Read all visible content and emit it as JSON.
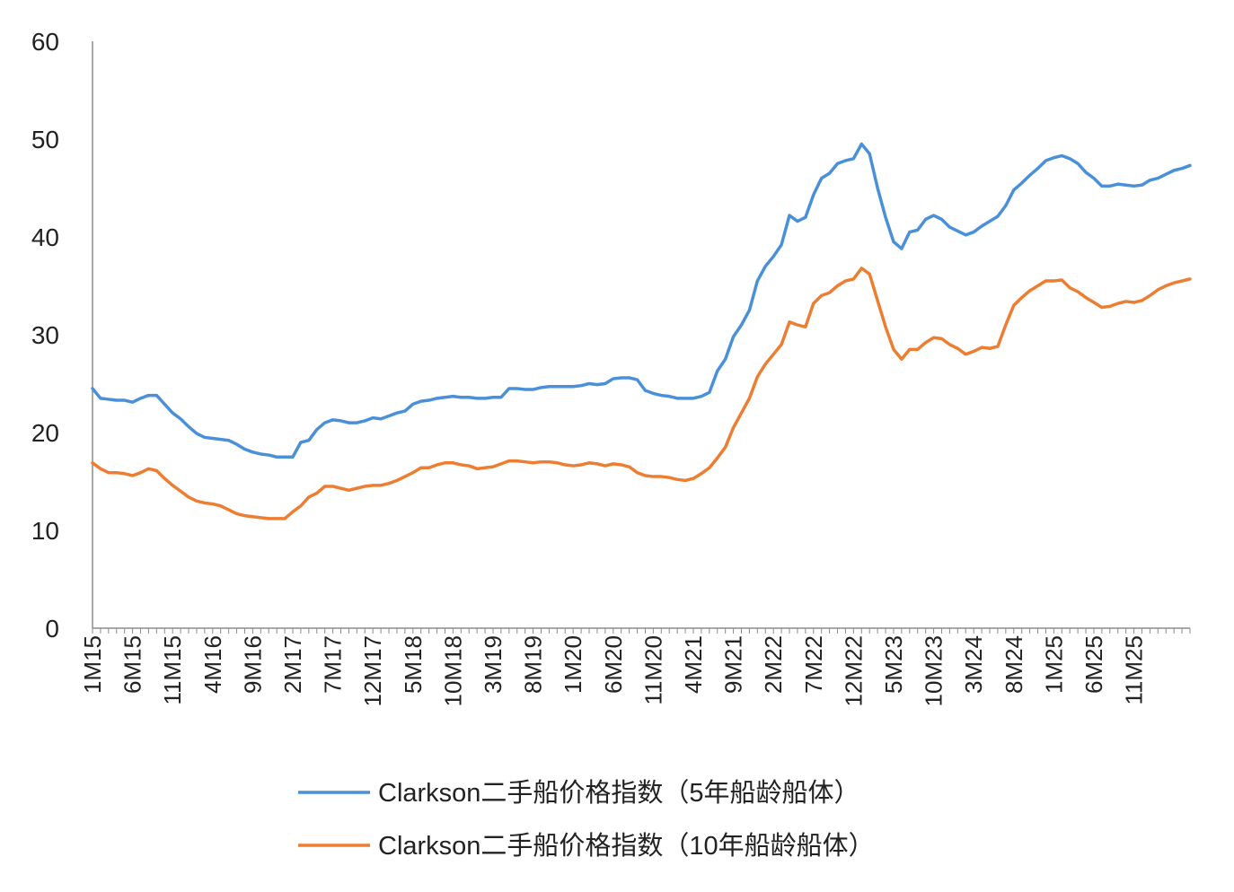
{
  "chart_data": {
    "type": "line",
    "title": "",
    "xlabel": "",
    "ylabel": "",
    "ylim": [
      0,
      60
    ],
    "yticks": [
      0,
      10,
      20,
      30,
      40,
      50,
      60
    ],
    "grid": false,
    "legend_position": "bottom",
    "x_tick_labels": [
      "1M15",
      "6M15",
      "11M15",
      "4M16",
      "9M16",
      "2M17",
      "7M17",
      "12M17",
      "5M18",
      "10M18",
      "3M19",
      "8M19",
      "1M20",
      "6M20",
      "11M20",
      "4M21",
      "9M21",
      "2M22",
      "7M22",
      "12M22",
      "5M23",
      "10M23",
      "3M24",
      "8M24",
      "1M25",
      "6M25",
      "11M25"
    ],
    "x_start": "2015-01",
    "series": [
      {
        "name": "Clarkson二手船价格指数（5年船龄船体）",
        "color": "#4a90d9",
        "values": [
          24.5,
          23.5,
          23.4,
          23.3,
          23.3,
          23.1,
          23.5,
          23.8,
          23.8,
          22.9,
          22.0,
          21.4,
          20.6,
          19.9,
          19.5,
          19.4,
          19.3,
          19.2,
          18.8,
          18.3,
          18.0,
          17.8,
          17.7,
          17.5,
          17.5,
          17.5,
          19.0,
          19.2,
          20.3,
          21.0,
          21.3,
          21.2,
          21.0,
          21.0,
          21.2,
          21.5,
          21.4,
          21.7,
          22.0,
          22.2,
          22.9,
          23.2,
          23.3,
          23.5,
          23.6,
          23.7,
          23.6,
          23.6,
          23.5,
          23.5,
          23.6,
          23.6,
          24.5,
          24.5,
          24.4,
          24.4,
          24.6,
          24.7,
          24.7,
          24.7,
          24.7,
          24.8,
          25.0,
          24.9,
          25.0,
          25.5,
          25.6,
          25.6,
          25.4,
          24.3,
          24.0,
          23.8,
          23.7,
          23.5,
          23.5,
          23.5,
          23.7,
          24.1,
          26.3,
          27.5,
          29.8,
          31.0,
          32.5,
          35.5,
          37.0,
          38.0,
          39.2,
          42.2,
          41.6,
          42.0,
          44.3,
          46.0,
          46.5,
          47.5,
          47.8,
          48.0,
          49.5,
          48.5,
          45.0,
          42.0,
          39.5,
          38.8,
          40.5,
          40.7,
          41.8,
          42.2,
          41.8,
          41.0,
          40.6,
          40.2,
          40.5,
          41.1,
          41.6,
          42.1,
          43.2,
          44.8,
          45.5,
          46.3,
          47.0,
          47.8,
          48.1,
          48.3,
          48.0,
          47.5,
          46.6,
          46.0,
          45.2,
          45.2,
          45.4,
          45.3,
          45.2,
          45.3,
          45.8,
          46.0,
          46.4,
          46.8,
          47.0,
          47.3
        ]
      },
      {
        "name": "Clarkson二手船价格指数（10年船龄船体）",
        "color": "#ed7d31",
        "values": [
          16.9,
          16.3,
          15.9,
          15.9,
          15.8,
          15.6,
          15.9,
          16.3,
          16.1,
          15.3,
          14.6,
          14.0,
          13.4,
          13.0,
          12.8,
          12.7,
          12.5,
          12.1,
          11.7,
          11.5,
          11.4,
          11.3,
          11.2,
          11.2,
          11.2,
          11.9,
          12.5,
          13.4,
          13.8,
          14.5,
          14.5,
          14.3,
          14.1,
          14.3,
          14.5,
          14.6,
          14.6,
          14.8,
          15.1,
          15.5,
          15.9,
          16.4,
          16.4,
          16.7,
          16.9,
          16.9,
          16.7,
          16.6,
          16.3,
          16.4,
          16.5,
          16.8,
          17.1,
          17.1,
          17.0,
          16.9,
          17.0,
          17.0,
          16.9,
          16.7,
          16.6,
          16.7,
          16.9,
          16.8,
          16.6,
          16.8,
          16.7,
          16.5,
          15.9,
          15.6,
          15.5,
          15.5,
          15.4,
          15.2,
          15.1,
          15.3,
          15.8,
          16.4,
          17.4,
          18.5,
          20.5,
          22.0,
          23.5,
          25.7,
          27.0,
          28.0,
          29.0,
          31.3,
          31.0,
          30.8,
          33.2,
          34.0,
          34.3,
          35.0,
          35.5,
          35.7,
          36.8,
          36.2,
          33.5,
          30.8,
          28.5,
          27.5,
          28.5,
          28.5,
          29.2,
          29.7,
          29.6,
          29.0,
          28.6,
          28.0,
          28.3,
          28.7,
          28.6,
          28.8,
          31.0,
          33.0,
          33.8,
          34.5,
          35.0,
          35.5,
          35.5,
          35.6,
          34.8,
          34.4,
          33.8,
          33.3,
          32.8,
          32.9,
          33.2,
          33.4,
          33.3,
          33.5,
          34.0,
          34.6,
          35.0,
          35.3,
          35.5,
          35.7
        ]
      }
    ]
  }
}
